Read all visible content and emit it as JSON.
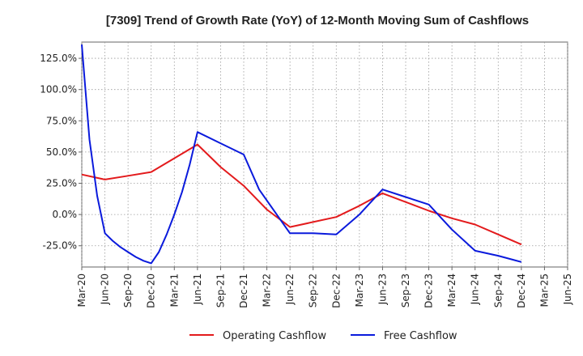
{
  "chart_data": {
    "type": "line",
    "title": "[7309]  Trend of Growth Rate (YoY) of 12-Month Moving Sum of Cashflows",
    "xlabel": "",
    "ylabel": "",
    "x_ticks": [
      "Mar-20",
      "Jun-20",
      "Sep-20",
      "Dec-20",
      "Mar-21",
      "Jun-21",
      "Sep-21",
      "Dec-21",
      "Mar-22",
      "Jun-22",
      "Sep-22",
      "Dec-22",
      "Mar-23",
      "Jun-23",
      "Sep-23",
      "Dec-23",
      "Mar-24",
      "Jun-24",
      "Sep-24",
      "Dec-24",
      "Mar-25",
      "Jun-25"
    ],
    "y_ticks": [
      {
        "value": 125,
        "label": "125.0%"
      },
      {
        "value": 100,
        "label": "100.0%"
      },
      {
        "value": 75,
        "label": "75.0%"
      },
      {
        "value": 50,
        "label": "50.0%"
      },
      {
        "value": 25,
        "label": "25.0%"
      },
      {
        "value": 0,
        "label": "0.0%"
      },
      {
        "value": -25,
        "label": "-25.0%"
      }
    ],
    "ylim": [
      -42,
      138
    ],
    "grid": true,
    "legend_position": "bottom",
    "series": [
      {
        "name": "Operating Cashflow",
        "color": "#e31a1c",
        "points": [
          [
            "Mar-20",
            32
          ],
          [
            "Jun-20",
            28
          ],
          [
            "Sep-20",
            31
          ],
          [
            "Dec-20",
            34
          ],
          [
            "Mar-21",
            45
          ],
          [
            "Jun-21",
            56
          ],
          [
            "Sep-21",
            38
          ],
          [
            "Dec-21",
            23
          ],
          [
            "Mar-22",
            4
          ],
          [
            "Jun-22",
            -10
          ],
          [
            "Sep-22",
            -6
          ],
          [
            "Dec-22",
            -2
          ],
          [
            "Mar-23",
            7
          ],
          [
            "Jun-23",
            17
          ],
          [
            "Sep-23",
            10
          ],
          [
            "Dec-23",
            3
          ],
          [
            "Mar-24",
            -3
          ],
          [
            "Jun-24",
            -8
          ],
          [
            "Sep-24",
            -16
          ],
          [
            "Dec-24",
            -24
          ]
        ]
      },
      {
        "name": "Free Cashflow",
        "color": "#0a1adc",
        "points": [
          [
            "Mar-20",
            136
          ],
          [
            "Apr-20",
            60
          ],
          [
            "May-20",
            15
          ],
          [
            "Jun-20",
            -15
          ],
          [
            "Jul-20",
            -21
          ],
          [
            "Aug-20",
            -26
          ],
          [
            "Sep-20",
            -30
          ],
          [
            "Oct-20",
            -34
          ],
          [
            "Nov-20",
            -37
          ],
          [
            "Dec-20",
            -39
          ],
          [
            "Jan-21",
            -30
          ],
          [
            "Feb-21",
            -16
          ],
          [
            "Mar-21",
            0
          ],
          [
            "Apr-21",
            18
          ],
          [
            "May-21",
            40
          ],
          [
            "Jun-21",
            66
          ],
          [
            "Sep-21",
            57
          ],
          [
            "Dec-21",
            48
          ],
          [
            "Feb-22",
            20
          ],
          [
            "Jun-22",
            -15
          ],
          [
            "Sep-22",
            -15
          ],
          [
            "Dec-22",
            -16
          ],
          [
            "Mar-23",
            0
          ],
          [
            "Jun-23",
            20
          ],
          [
            "Sep-23",
            14
          ],
          [
            "Dec-23",
            8
          ],
          [
            "Mar-24",
            -12
          ],
          [
            "Jun-24",
            -29
          ],
          [
            "Sep-24",
            -33
          ],
          [
            "Dec-24",
            -38
          ]
        ]
      }
    ]
  }
}
